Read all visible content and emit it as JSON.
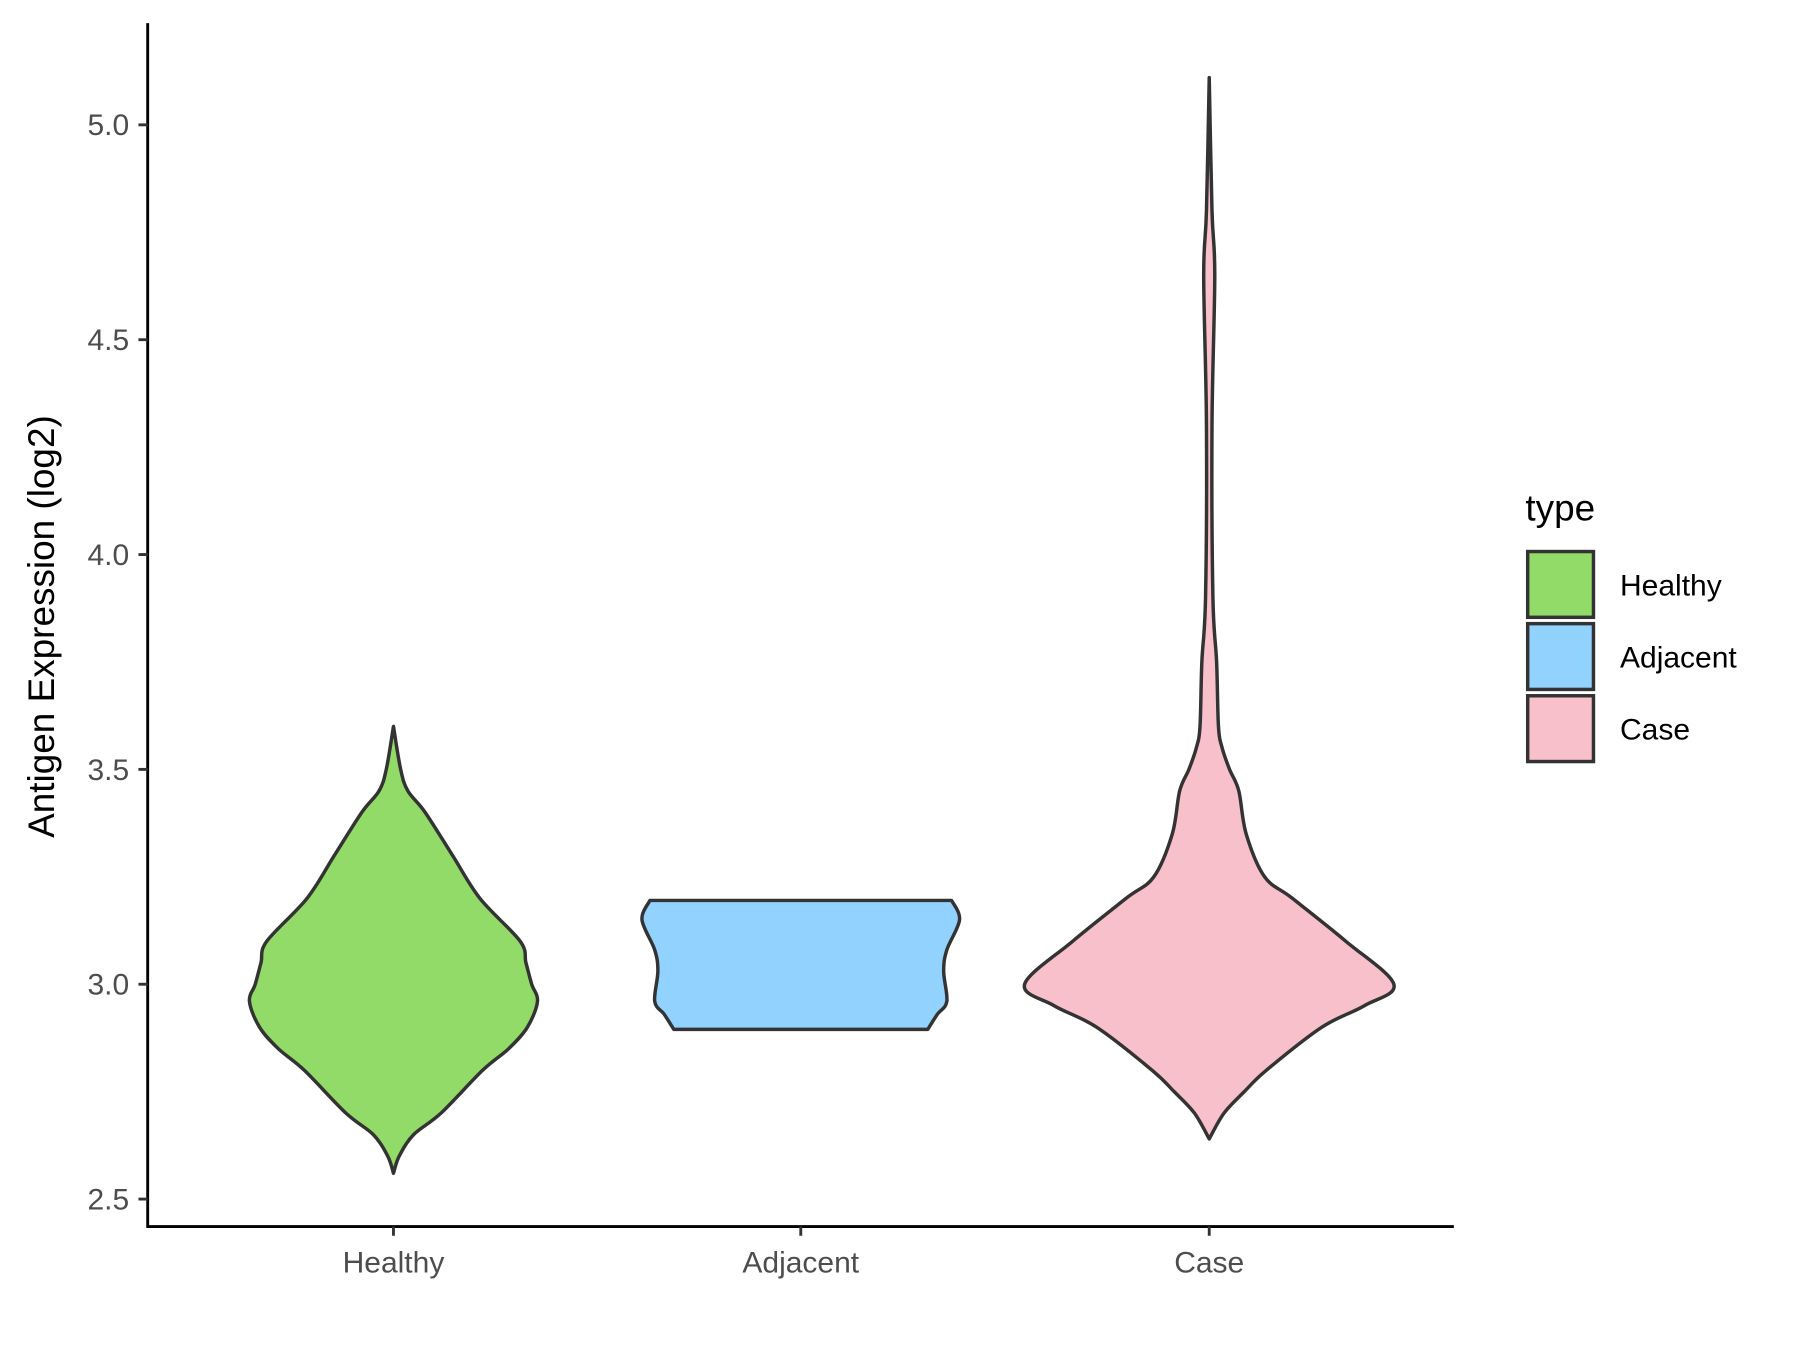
{
  "chart_data": {
    "type": "violin",
    "title": "",
    "xlabel": "",
    "ylabel": "Antigen Expression (log2)",
    "ylim": [
      2.47,
      5.24
    ],
    "yticks": [
      "2.5",
      "3.0",
      "3.5",
      "4.0",
      "4.5",
      "5.0"
    ],
    "categories": [
      "Healthy",
      "Adjacent",
      "Case"
    ],
    "grid": false,
    "legend": {
      "title": "type",
      "placement": "right",
      "entries": [
        "Healthy",
        "Adjacent",
        "Case"
      ]
    },
    "colors": {
      "Healthy": "#93DB69",
      "Adjacent": "#92D2FF",
      "Case": "#F7C0CB",
      "outline": "#333333"
    },
    "series": [
      {
        "category": "Healthy",
        "min": 2.56,
        "max": 3.6,
        "relative_max_width": 0.78,
        "density": [
          [
            2.56,
            0
          ],
          [
            2.6,
            0.04
          ],
          [
            2.65,
            0.14
          ],
          [
            2.7,
            0.33
          ],
          [
            2.8,
            0.62
          ],
          [
            2.85,
            0.8
          ],
          [
            2.9,
            0.93
          ],
          [
            2.96,
            1.0
          ],
          [
            3.0,
            0.96
          ],
          [
            3.05,
            0.92
          ],
          [
            3.1,
            0.88
          ],
          [
            3.2,
            0.6
          ],
          [
            3.3,
            0.41
          ],
          [
            3.4,
            0.22
          ],
          [
            3.45,
            0.1
          ],
          [
            3.5,
            0.05
          ],
          [
            3.6,
            0
          ]
        ]
      },
      {
        "category": "Adjacent",
        "min": 2.895,
        "max": 3.195,
        "relative_max_width": 0.86,
        "density": [
          [
            2.895,
            0.8
          ],
          [
            2.93,
            0.86
          ],
          [
            2.96,
            0.92
          ],
          [
            3.03,
            0.9
          ],
          [
            3.08,
            0.92
          ],
          [
            3.15,
            1.0
          ],
          [
            3.195,
            0.95
          ]
        ]
      },
      {
        "category": "Case",
        "min": 2.64,
        "max": 5.11,
        "relative_max_width": 1.0,
        "density": [
          [
            2.64,
            0
          ],
          [
            2.7,
            0.08
          ],
          [
            2.75,
            0.19
          ],
          [
            2.8,
            0.31
          ],
          [
            2.9,
            0.61
          ],
          [
            2.95,
            0.84
          ],
          [
            3.0,
            1.0
          ],
          [
            3.1,
            0.74
          ],
          [
            3.2,
            0.45
          ],
          [
            3.25,
            0.3
          ],
          [
            3.35,
            0.2
          ],
          [
            3.45,
            0.16
          ],
          [
            3.5,
            0.11
          ],
          [
            3.55,
            0.07
          ],
          [
            3.6,
            0.05
          ],
          [
            3.75,
            0.04
          ],
          [
            3.9,
            0.02
          ],
          [
            4.3,
            0.015
          ],
          [
            4.65,
            0.03
          ],
          [
            4.8,
            0.015
          ],
          [
            5.11,
            0
          ]
        ]
      }
    ]
  }
}
